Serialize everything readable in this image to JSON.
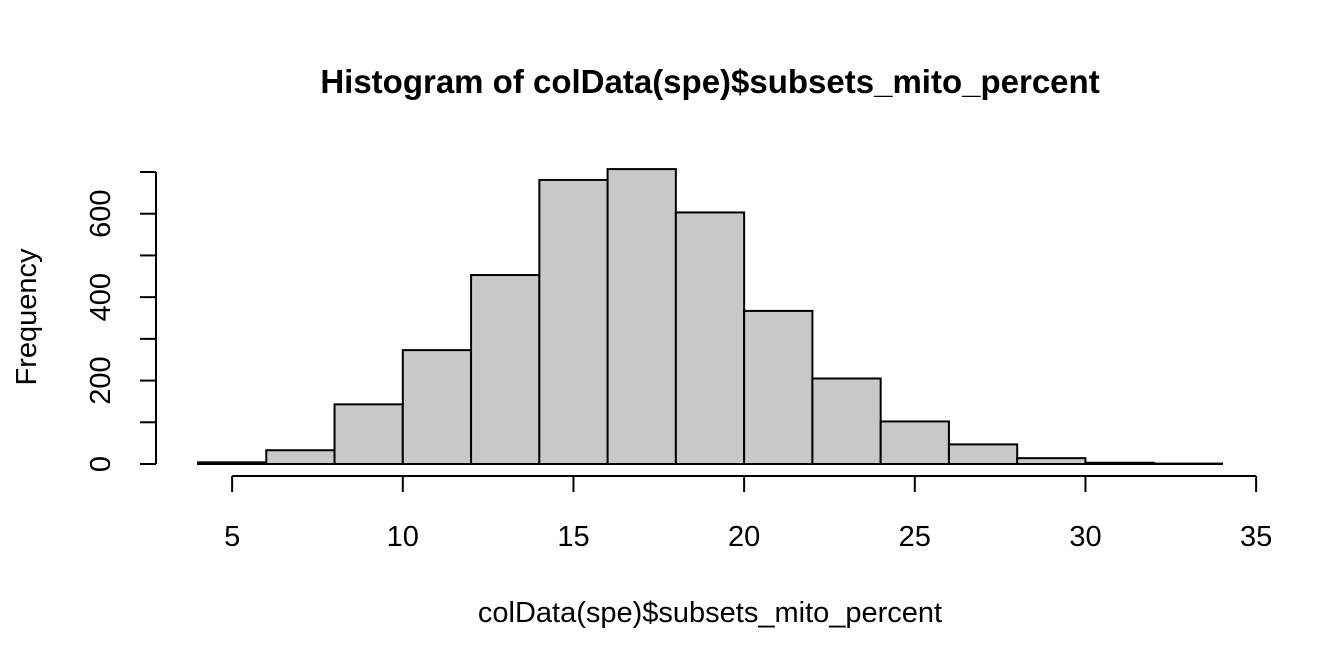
{
  "chart_data": {
    "type": "bar",
    "title": "Histogram of colData(spe)$subsets_mito_percent",
    "xlabel": "colData(spe)$subsets_mito_percent",
    "ylabel": "Frequency",
    "bins": [
      {
        "start": 4,
        "end": 6,
        "count": 4
      },
      {
        "start": 6,
        "end": 8,
        "count": 33
      },
      {
        "start": 8,
        "end": 10,
        "count": 143
      },
      {
        "start": 10,
        "end": 12,
        "count": 273
      },
      {
        "start": 12,
        "end": 14,
        "count": 453
      },
      {
        "start": 14,
        "end": 16,
        "count": 681
      },
      {
        "start": 16,
        "end": 18,
        "count": 707
      },
      {
        "start": 18,
        "end": 20,
        "count": 603
      },
      {
        "start": 20,
        "end": 22,
        "count": 367
      },
      {
        "start": 22,
        "end": 24,
        "count": 205
      },
      {
        "start": 24,
        "end": 26,
        "count": 102
      },
      {
        "start": 26,
        "end": 28,
        "count": 47
      },
      {
        "start": 28,
        "end": 30,
        "count": 14
      },
      {
        "start": 30,
        "end": 32,
        "count": 3
      },
      {
        "start": 32,
        "end": 34,
        "count": 1
      }
    ],
    "xlim": [
      3,
      35
    ],
    "ylim": [
      0,
      700
    ],
    "xticks": [
      5,
      10,
      15,
      20,
      25,
      30,
      35
    ],
    "xtick_labels": [
      "5",
      "10",
      "15",
      "20",
      "25",
      "30",
      "35"
    ],
    "yticks": [
      0,
      100,
      200,
      300,
      400,
      500,
      600,
      700
    ],
    "ytick_labels": [
      "0",
      "",
      "200",
      "",
      "400",
      "",
      "600",
      ""
    ],
    "grid": false,
    "legend": "none",
    "bar_fill": "#c8c8c8",
    "bar_stroke": "#000000"
  }
}
